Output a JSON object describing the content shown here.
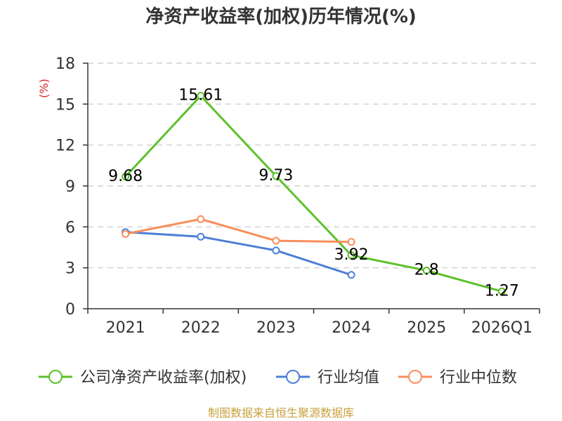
{
  "title": "净资产收益率(加权)历年情况(%)",
  "footer": "制图数据来自恒生聚源数据库",
  "chart_data": {
    "type": "line",
    "title": "净资产收益率(加权)历年情况(%)",
    "xlabel": "",
    "ylabel": "(%)",
    "categories": [
      "2021",
      "2022",
      "2023",
      "2024",
      "2025",
      "2026Q1"
    ],
    "ylim": [
      0,
      18
    ],
    "yticks": [
      0,
      3,
      6,
      9,
      12,
      15,
      18
    ],
    "grid": true,
    "legend": "bottom",
    "series": [
      {
        "name": "公司净资产收益率(加权)",
        "color": "#5cc12a",
        "show_labels": true,
        "values": [
          9.68,
          15.61,
          9.73,
          3.92,
          2.8,
          1.27
        ]
      },
      {
        "name": "行业均值",
        "color": "#4d7fd6",
        "show_labels": false,
        "values": [
          5.62,
          5.28,
          4.27,
          2.48,
          null,
          null
        ]
      },
      {
        "name": "行业中位数",
        "color": "#f88e5c",
        "show_labels": false,
        "values": [
          5.48,
          6.57,
          4.98,
          4.9,
          null,
          null
        ]
      }
    ]
  }
}
